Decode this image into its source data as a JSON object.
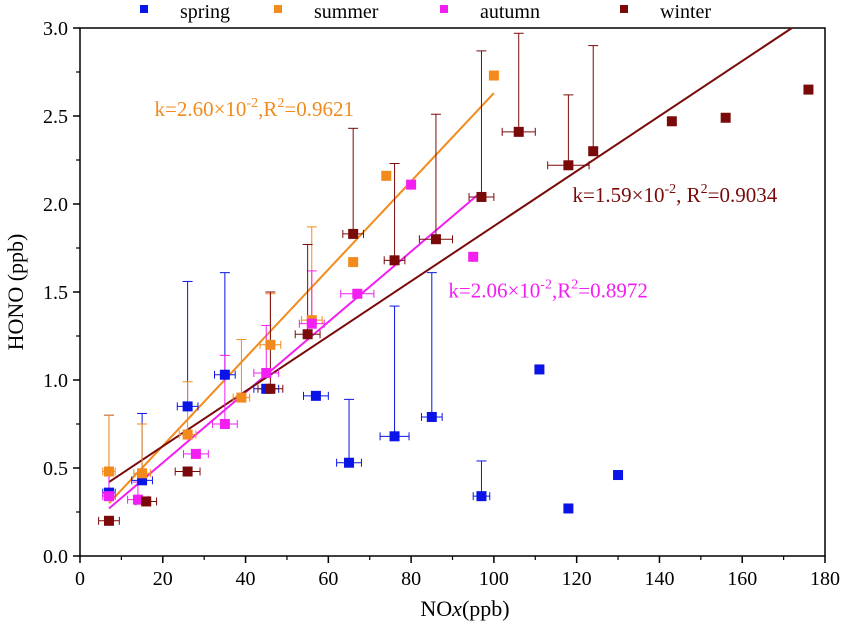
{
  "chart_data": {
    "type": "scatter",
    "xlabel_main": "NO",
    "xlabel_italic": "x",
    "xlabel_tail": "(ppb)",
    "ylabel": "HONO (ppb)",
    "xlim": [
      0,
      180
    ],
    "ylim": [
      0,
      3.0
    ],
    "xticks": [
      0,
      20,
      40,
      60,
      80,
      100,
      120,
      140,
      160,
      180
    ],
    "yticks": [
      "0.0",
      "0.5",
      "1.0",
      "1.5",
      "2.0",
      "2.5",
      "3.0"
    ],
    "grid": false,
    "legend_position": "top",
    "series": [
      {
        "name": "spring",
        "color": "#0a14e6",
        "points": [
          {
            "x": 7,
            "y": 0.36,
            "xerr": 1.5,
            "yerr": 0.44
          },
          {
            "x": 15,
            "y": 0.43,
            "xerr": 2.5,
            "yerr": 0.38
          },
          {
            "x": 26,
            "y": 0.85,
            "xerr": 2.5,
            "yerr": 0.71
          },
          {
            "x": 35,
            "y": 1.03,
            "xerr": 2.5,
            "yerr": 0.58
          },
          {
            "x": 45,
            "y": 0.95,
            "xerr": 3,
            "yerr": 0
          },
          {
            "x": 57,
            "y": 0.91,
            "xerr": 3,
            "yerr": 0
          },
          {
            "x": 65,
            "y": 0.53,
            "xerr": 3,
            "yerr": 0.36
          },
          {
            "x": 76,
            "y": 0.68,
            "xerr": 3.5,
            "yerr": 0.74
          },
          {
            "x": 85,
            "y": 0.79,
            "xerr": 2.5,
            "yerr": 0.82
          },
          {
            "x": 97,
            "y": 0.34,
            "xerr": 2,
            "yerr": 0.2
          },
          {
            "x": 111,
            "y": 1.06,
            "xerr": 0,
            "yerr": 0
          },
          {
            "x": 118,
            "y": 0.27,
            "xerr": 0,
            "yerr": 0
          },
          {
            "x": 130,
            "y": 0.46,
            "xerr": 0,
            "yerr": 0
          }
        ]
      },
      {
        "name": "summer",
        "color": "#f28a1c",
        "points": [
          {
            "x": 7,
            "y": 0.48,
            "xerr": 1.5,
            "yerr": 0.32
          },
          {
            "x": 15,
            "y": 0.47,
            "xerr": 2,
            "yerr": 0.28
          },
          {
            "x": 26,
            "y": 0.69,
            "xerr": 2,
            "yerr": 0.3
          },
          {
            "x": 39,
            "y": 0.9,
            "xerr": 2,
            "yerr": 0.33
          },
          {
            "x": 46,
            "y": 1.2,
            "xerr": 2.5,
            "yerr": 0.29
          },
          {
            "x": 56,
            "y": 1.34,
            "xerr": 2.5,
            "yerr": 0.53
          },
          {
            "x": 66,
            "y": 1.67,
            "xerr": 0,
            "yerr": 0
          },
          {
            "x": 74,
            "y": 2.16,
            "xerr": 0,
            "yerr": 0
          },
          {
            "x": 100,
            "y": 2.73,
            "xerr": 0,
            "yerr": 0
          }
        ]
      },
      {
        "name": "autumn",
        "color": "#f21ef2",
        "points": [
          {
            "x": 7,
            "y": 0.34,
            "xerr": 1.5,
            "yerr": 0.12
          },
          {
            "x": 14,
            "y": 0.32,
            "xerr": 2.5,
            "yerr": 0.1
          },
          {
            "x": 28,
            "y": 0.58,
            "xerr": 3,
            "yerr": 0
          },
          {
            "x": 35,
            "y": 0.75,
            "xerr": 3,
            "yerr": 0.39
          },
          {
            "x": 45,
            "y": 1.04,
            "xerr": 3,
            "yerr": 0.27
          },
          {
            "x": 56,
            "y": 1.32,
            "xerr": 3,
            "yerr": 0.3
          },
          {
            "x": 67,
            "y": 1.49,
            "xerr": 4,
            "yerr": 0
          },
          {
            "x": 80,
            "y": 2.11,
            "xerr": 0,
            "yerr": 0
          },
          {
            "x": 95,
            "y": 1.7,
            "xerr": 0,
            "yerr": 0
          }
        ]
      },
      {
        "name": "winter",
        "color": "#7a0a0a",
        "points": [
          {
            "x": 7,
            "y": 0.2,
            "xerr": 2.5,
            "yerr": 0
          },
          {
            "x": 16,
            "y": 0.31,
            "xerr": 2.5,
            "yerr": 0
          },
          {
            "x": 26,
            "y": 0.48,
            "xerr": 3,
            "yerr": 0
          },
          {
            "x": 46,
            "y": 0.95,
            "xerr": 3,
            "yerr": 0.55
          },
          {
            "x": 55,
            "y": 1.26,
            "xerr": 3,
            "yerr": 0.51
          },
          {
            "x": 66,
            "y": 1.83,
            "xerr": 2.5,
            "yerr": 0.6
          },
          {
            "x": 76,
            "y": 1.68,
            "xerr": 2.5,
            "yerr": 0.55
          },
          {
            "x": 86,
            "y": 1.8,
            "xerr": 4,
            "yerr": 0.71
          },
          {
            "x": 97,
            "y": 2.04,
            "xerr": 3,
            "yerr": 0.83
          },
          {
            "x": 106,
            "y": 2.41,
            "xerr": 4,
            "yerr": 0.56
          },
          {
            "x": 118,
            "y": 2.22,
            "xerr": 5,
            "yerr": 0.4
          },
          {
            "x": 124,
            "y": 2.3,
            "xerr": 0,
            "yerr": 0.6
          },
          {
            "x": 143,
            "y": 2.47,
            "xerr": 0,
            "yerr": 0
          },
          {
            "x": 156,
            "y": 2.49,
            "xerr": 0,
            "yerr": 0
          },
          {
            "x": 176,
            "y": 2.65,
            "xerr": 0,
            "yerr": 0
          }
        ]
      }
    ],
    "fits": [
      {
        "series": "summer",
        "color": "#f28a1c",
        "x0": 7,
        "y0": 0.3,
        "x1": 100,
        "y1": 2.63
      },
      {
        "series": "autumn",
        "color": "#f21ef2",
        "x0": 7,
        "y0": 0.27,
        "x1": 96,
        "y1": 2.05
      },
      {
        "series": "winter",
        "color": "#7a0a0a",
        "x0": 7,
        "y0": 0.42,
        "x1": 172,
        "y1": 3.0
      }
    ],
    "annotations": [
      {
        "series": "summer",
        "color": "#f28a1c",
        "k": "k=2.60×10",
        "exp": "-2",
        "r_sep": ",R",
        "r_exp": "2",
        "r_val": "=0.9621",
        "ax": 18,
        "ay": 2.5
      },
      {
        "series": "winter",
        "color": "#7a0a0a",
        "k": "k=1.59×10",
        "exp": "-2",
        "r_sep": ", R",
        "r_exp": "2",
        "r_val": "=0.9034",
        "ax": 119,
        "ay": 2.01
      },
      {
        "series": "autumn",
        "color": "#f21ef2",
        "k": "k=2.06×10",
        "exp": "-2",
        "r_sep": ",R",
        "r_exp": "2",
        "r_val": "=0.8972",
        "ax": 89,
        "ay": 1.47
      }
    ]
  }
}
